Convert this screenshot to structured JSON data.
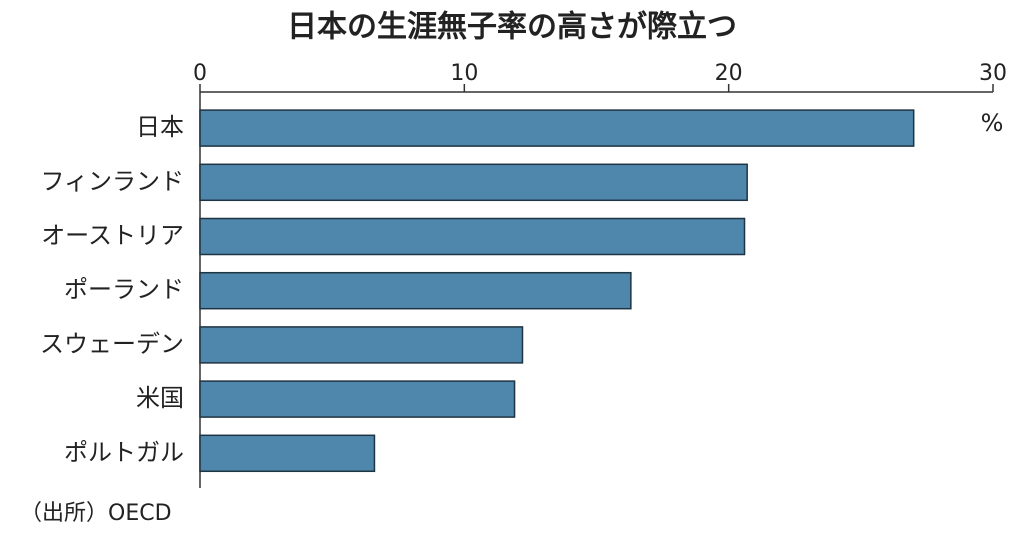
{
  "chart_data": {
    "type": "bar",
    "orientation": "horizontal",
    "title": "日本の生涯無子率の高さが際立つ",
    "unit_label": "%",
    "source": "（出所）OECD",
    "categories": [
      "日本",
      "フィンランド",
      "オーストリア",
      "ポーランド",
      "スウェーデン",
      "米国",
      "ポルトガル"
    ],
    "values": [
      27.0,
      20.7,
      20.6,
      16.3,
      12.2,
      11.9,
      6.6
    ],
    "color": "#4f86ab",
    "xlim": [
      0,
      30
    ],
    "xticks": [
      0,
      10,
      20,
      30
    ]
  }
}
